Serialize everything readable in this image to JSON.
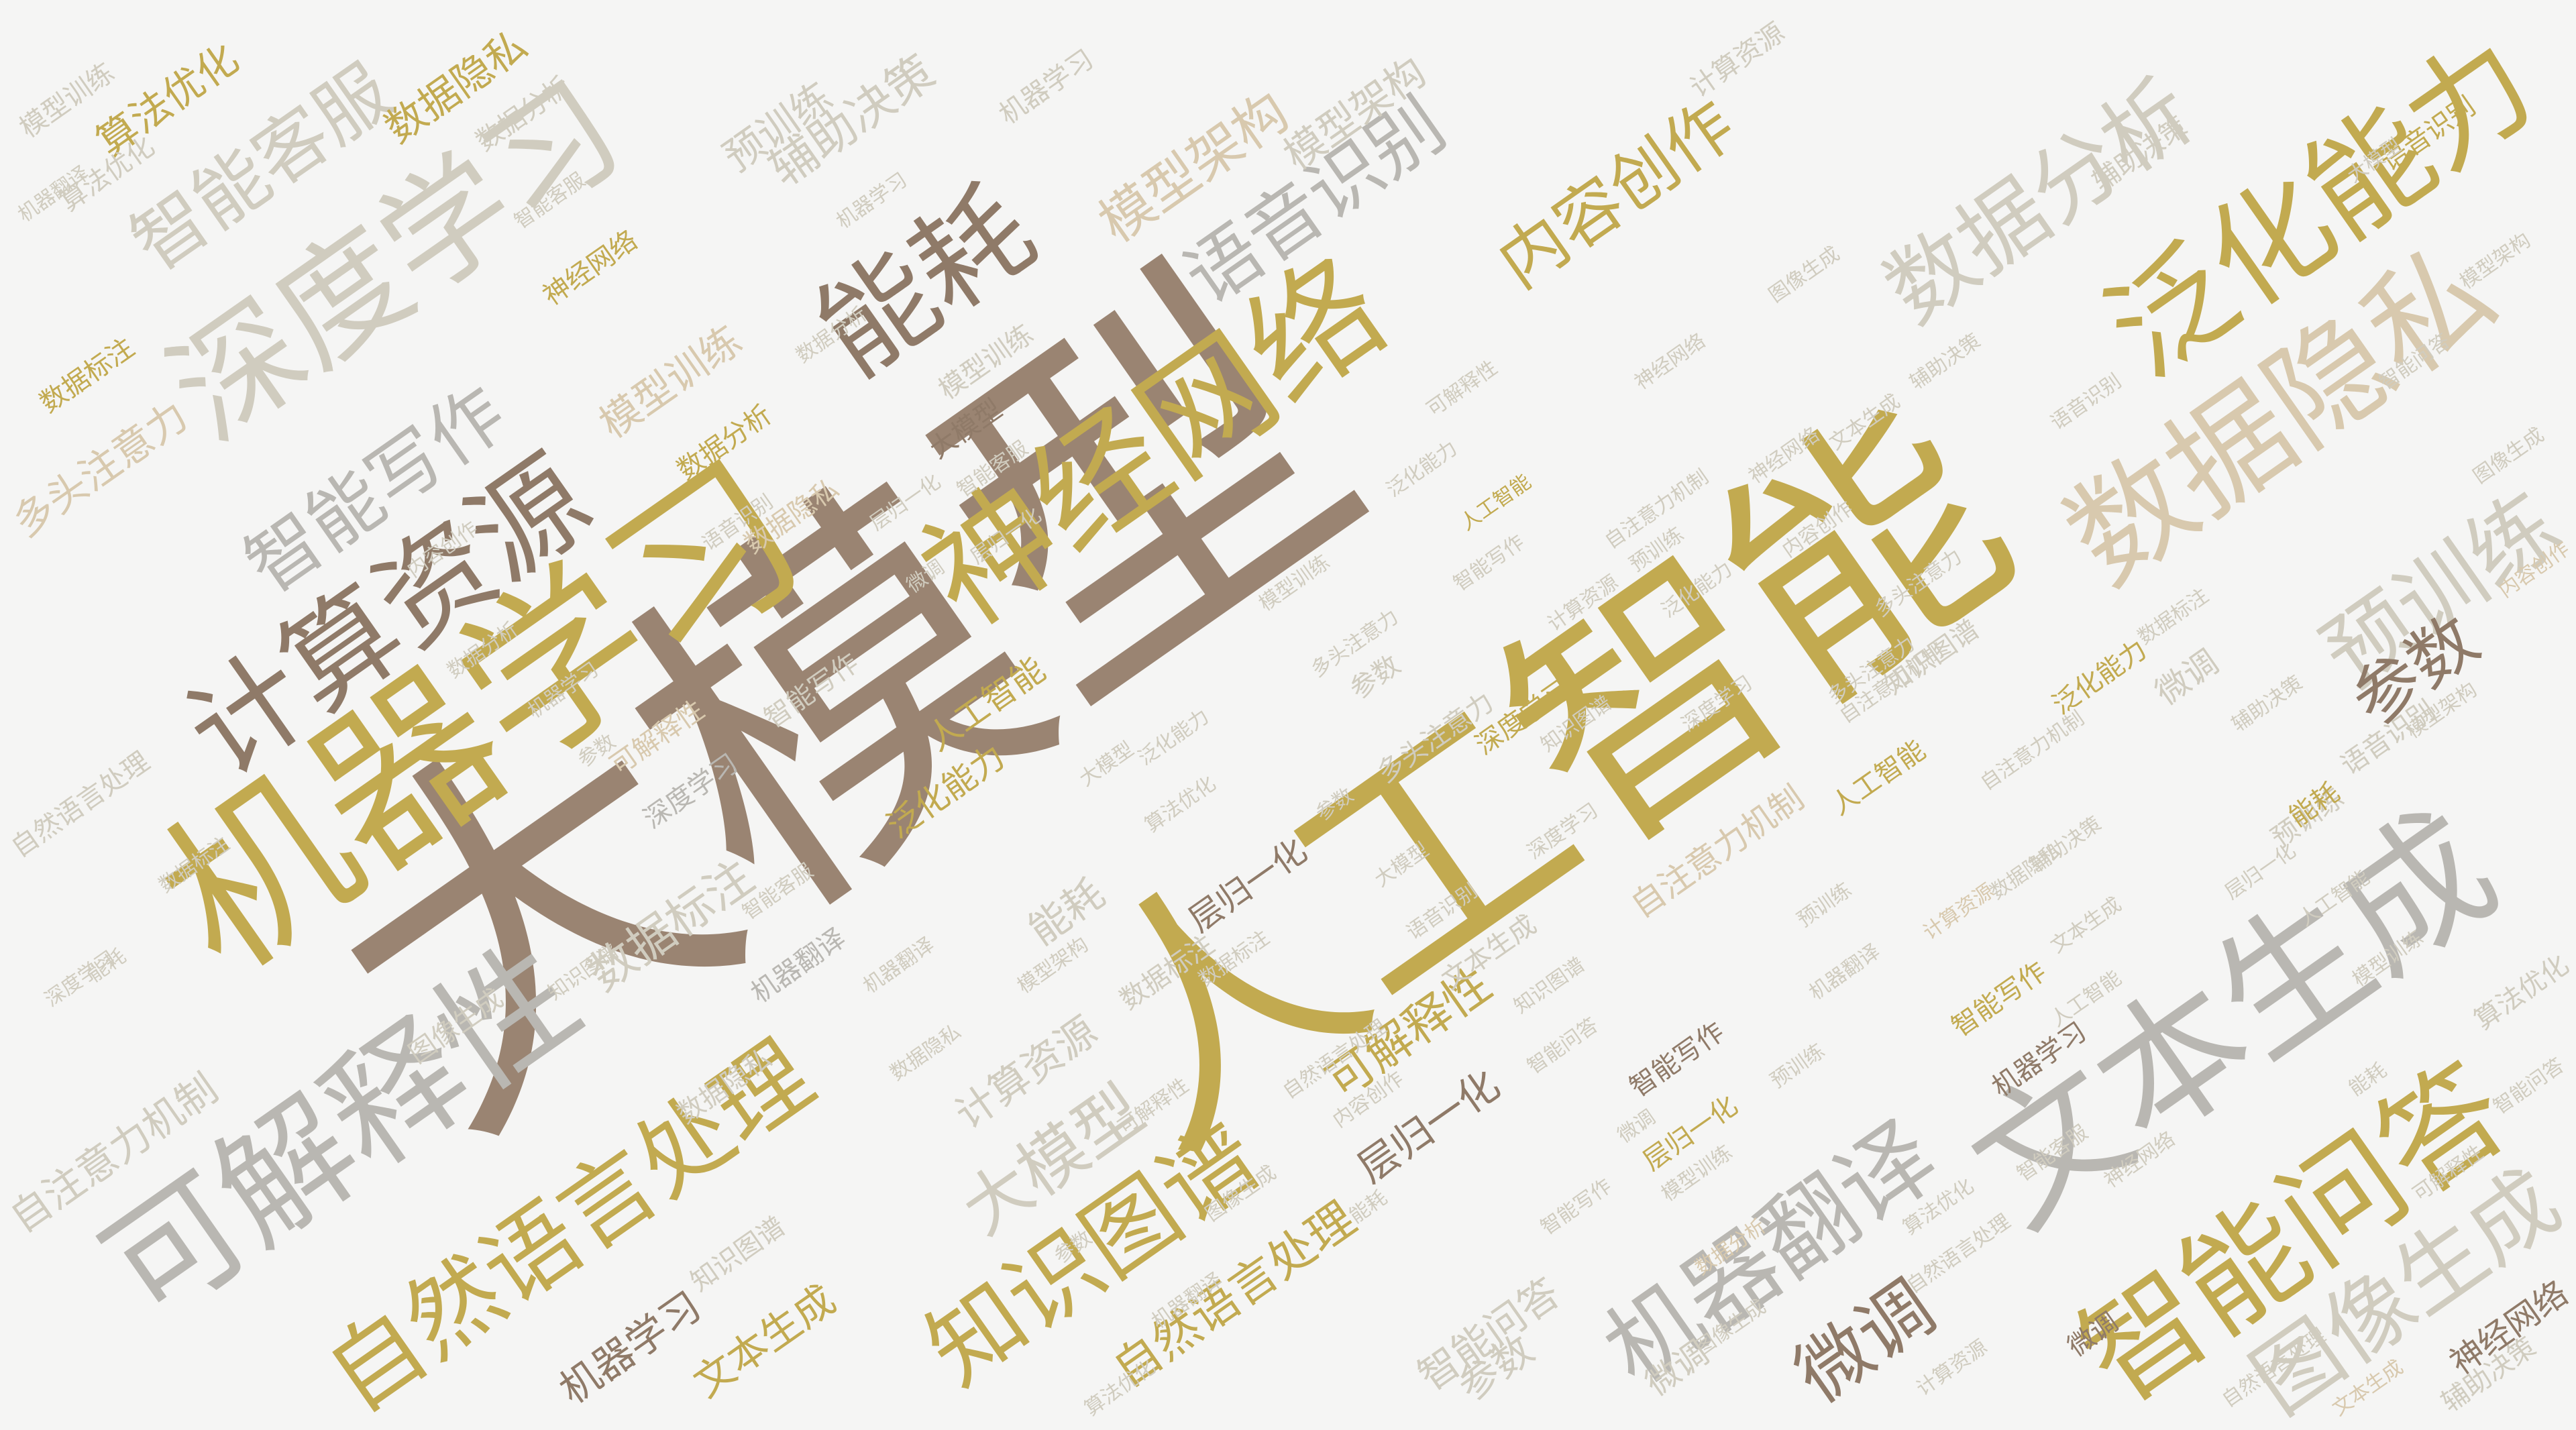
{
  "colors": {
    "background": "#f5f5f4",
    "taupe": "#9a8472",
    "gold": "#c2aa50",
    "grey": "#b9b7b2",
    "dark_taupe": "#8f7a68",
    "light_grey": "#d0ccbf",
    "beige": "#d8c9ae"
  },
  "words": [
    "大模型",
    "人工智能",
    "机器学习",
    "可解释性",
    "文本生成",
    "智能问答",
    "神经网络",
    "数据隐私",
    "深度学习",
    "计算资源",
    "泛化能力",
    "自然语言处理",
    "知识图谱",
    "机器翻译",
    "能耗",
    "数据分析",
    "预训练",
    "图像生成",
    "语音识别",
    "内容创作",
    "智能写作",
    "智能客服",
    "模型训练",
    "模型架构",
    "辅助决策",
    "参数",
    "微调",
    "算法优化",
    "数据标注",
    "层归一化",
    "多头注意力",
    "自注意力机制",
    "大模型",
    "自然语言处理",
    "图像生成",
    "可解释性",
    "知识图谱",
    "机器学习",
    "文本生成",
    "数据标注",
    "智能问答",
    "参数",
    "微调",
    "神经网络",
    "辅助决策",
    "层归一化",
    "智能写作",
    "计算资源",
    "能耗",
    "数据分析",
    "深度学习",
    "泛化能力",
    "人工智能",
    "预训练",
    "模型训练",
    "数据隐私",
    "语音识别",
    "内容创作",
    "算法优化",
    "模型架构",
    "多头注意力",
    "智能客服",
    "机器翻译",
    "自注意力机制",
    "数据隐私",
    "大模型",
    "深度学习",
    "人工智能",
    "智能写作",
    "泛化能力",
    "神经网络",
    "算法优化",
    "机器翻译",
    "语音识别",
    "计算资源",
    "机器学习",
    "数据分析",
    "参数",
    "图像生成",
    "文本生成",
    "数据标注",
    "知识图谱",
    "层归一化",
    "微调",
    "模型训练",
    "辅助决策",
    "预训练",
    "自然语言处理",
    "能耗",
    "内容创作",
    "多头注意力",
    "可解释性",
    "模型架构",
    "智能问答",
    "智能客服",
    "自注意力机制",
    "大模型",
    "机器学习",
    "数据隐私",
    "神经网络",
    "智能写作",
    "泛化能力",
    "人工智能",
    "计算资源",
    "深度学习",
    "语音识别",
    "数据分析",
    "微调",
    "图像生成",
    "机器翻译",
    "自然语言处理",
    "文本生成",
    "算法优化",
    "层归一化",
    "知识图谱",
    "数据标注",
    "参数",
    "能耗",
    "可解释性",
    "辅助决策",
    "预训练",
    "智能问答",
    "模型训练",
    "智能客服",
    "内容创作",
    "多头注意力",
    "模型架构",
    "自注意力机制",
    "人工智能",
    "大模型",
    "深度学习",
    "数据分析",
    "神经网络",
    "机器学习",
    "语音识别",
    "泛化能力",
    "智能写作",
    "数据隐私",
    "计算资源",
    "图像生成",
    "微调",
    "文本生成",
    "知识图谱",
    "机器翻译",
    "自然语言处理",
    "层归一化",
    "参数",
    "数据标注",
    "算法优化",
    "能耗",
    "辅助决策",
    "预训练",
    "可解释性",
    "智能问答",
    "模型训练",
    "内容创作",
    "智能客服",
    "多头注意力",
    "模型架构",
    "自注意力机制",
    "大模型",
    "人工智能",
    "机器学习",
    "深度学习",
    "神经网络",
    "数据隐私",
    "泛化能力",
    "语音识别",
    "数据分析",
    "计算资源",
    "智能写作",
    "图像生成",
    "文本生成",
    "微调",
    "机器翻译",
    "知识图谱",
    "自然语言处理",
    "参数",
    "层归一化",
    "算法优化",
    "数据标注",
    "能耗",
    "预训练",
    "辅助决策",
    "可解释性",
    "模型训练"
  ]
}
